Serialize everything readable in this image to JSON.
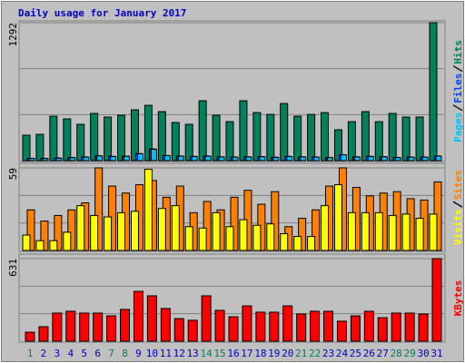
{
  "chart_data": [
    {
      "type": "bar",
      "title": "Daily usage for January 2017",
      "ylim": [
        0,
        1292
      ],
      "yticks": [
        1292
      ],
      "series": [
        {
          "name": "Hits",
          "color": "#00805c",
          "values": [
            238,
            246,
            416,
            391,
            340,
            442,
            408,
            425,
            476,
            518,
            459,
            357,
            340,
            561,
            425,
            365,
            561,
            450,
            433,
            535,
            416,
            433,
            450,
            289,
            365,
            459,
            365,
            442,
            408,
            408,
            1292
          ]
        },
        {
          "name": "Files",
          "color": "#0040ff",
          "values": [
            22,
            22,
            25,
            30,
            34,
            46,
            40,
            42,
            66,
            110,
            48,
            44,
            40,
            44,
            36,
            34,
            36,
            38,
            32,
            40,
            36,
            34,
            30,
            56,
            36,
            40,
            38,
            30,
            34,
            34,
            44
          ]
        },
        {
          "name": "Pages",
          "color": "#00c0ff",
          "values": [
            20,
            20,
            22,
            28,
            32,
            44,
            38,
            40,
            64,
            106,
            46,
            42,
            38,
            42,
            34,
            32,
            34,
            36,
            30,
            38,
            34,
            32,
            28,
            54,
            34,
            38,
            36,
            28,
            32,
            32,
            42
          ]
        }
      ]
    },
    {
      "type": "bar",
      "ylim": [
        0,
        59
      ],
      "yticks": [
        59
      ],
      "series": [
        {
          "name": "Sites",
          "color": "#ff8000",
          "values": [
            29,
            21,
            25,
            29,
            34,
            59,
            46,
            41,
            47,
            50,
            38,
            46,
            27,
            35,
            29,
            38,
            43,
            33,
            42,
            17,
            23,
            29,
            46,
            59,
            45,
            39,
            41,
            42,
            37,
            36,
            49
          ]
        },
        {
          "name": "Visits",
          "color": "#ffff00",
          "values": [
            11,
            7,
            7,
            13,
            32,
            25,
            24,
            27,
            28,
            58,
            30,
            32,
            17,
            16,
            27,
            17,
            22,
            18,
            19,
            12,
            10,
            10,
            32,
            47,
            27,
            27,
            27,
            25,
            26,
            23,
            26
          ]
        }
      ]
    },
    {
      "type": "bar",
      "ylim": [
        0,
        631
      ],
      "yticks": [
        631
      ],
      "categories": [
        "1",
        "2",
        "3",
        "4",
        "5",
        "6",
        "7",
        "8",
        "9",
        "10",
        "11",
        "12",
        "13",
        "14",
        "15",
        "16",
        "17",
        "18",
        "19",
        "20",
        "21",
        "22",
        "23",
        "24",
        "25",
        "26",
        "27",
        "28",
        "29",
        "30",
        "31"
      ],
      "category_colors": [
        "#00805c",
        "#0000c0",
        "#0000c0",
        "#0000c0",
        "#0000c0",
        "#0000c0",
        "#00805c",
        "#00805c",
        "#0000c0",
        "#0000c0",
        "#0000c0",
        "#0000c0",
        "#0000c0",
        "#00805c",
        "#00805c",
        "#0000c0",
        "#0000c0",
        "#0000c0",
        "#0000c0",
        "#0000c0",
        "#00805c",
        "#00805c",
        "#0000c0",
        "#0000c0",
        "#0000c0",
        "#0000c0",
        "#0000c0",
        "#00805c",
        "#00805c",
        "#0000c0",
        "#0000c0"
      ],
      "series": [
        {
          "name": "KBytes",
          "color": "#ff0000",
          "values": [
            69,
            111,
            215,
            229,
            215,
            215,
            194,
            243,
            381,
            347,
            250,
            173,
            160,
            347,
            236,
            187,
            270,
            222,
            222,
            270,
            208,
            229,
            229,
            153,
            194,
            229,
            180,
            215,
            215,
            208,
            631
          ]
        }
      ]
    }
  ]
}
